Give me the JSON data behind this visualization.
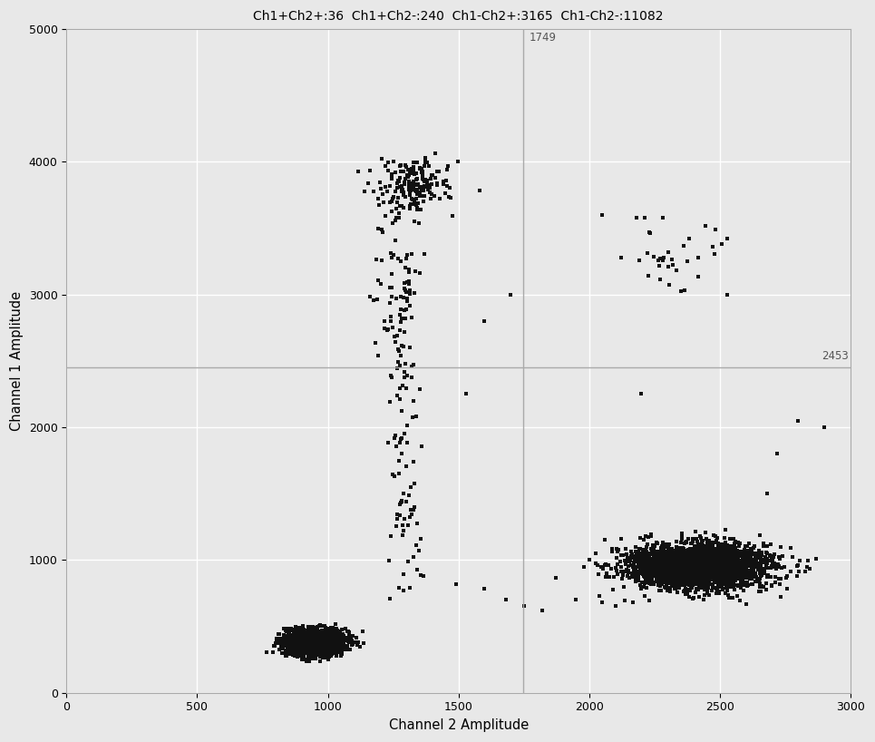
{
  "title": "Ch1+Ch2+:36  Ch1+Ch2-:240  Ch1-Ch2+:3165  Ch1-Ch2-:11082",
  "xlabel": "Channel 2 Amplitude",
  "ylabel": "Channel 1 Amplitude",
  "xlim": [
    0,
    3000
  ],
  "ylim": [
    0,
    5000
  ],
  "xticks": [
    0,
    500,
    1000,
    1500,
    2000,
    2500,
    3000
  ],
  "yticks": [
    0,
    1000,
    2000,
    3000,
    4000,
    5000
  ],
  "vline_x": 1749,
  "hline_y": 2453,
  "bg_color": "#e8e8e8",
  "grid_color": "#ffffff",
  "dot_color": "#111111",
  "threshold_line_color": "#aaaaaa",
  "scatter_seed": 99
}
